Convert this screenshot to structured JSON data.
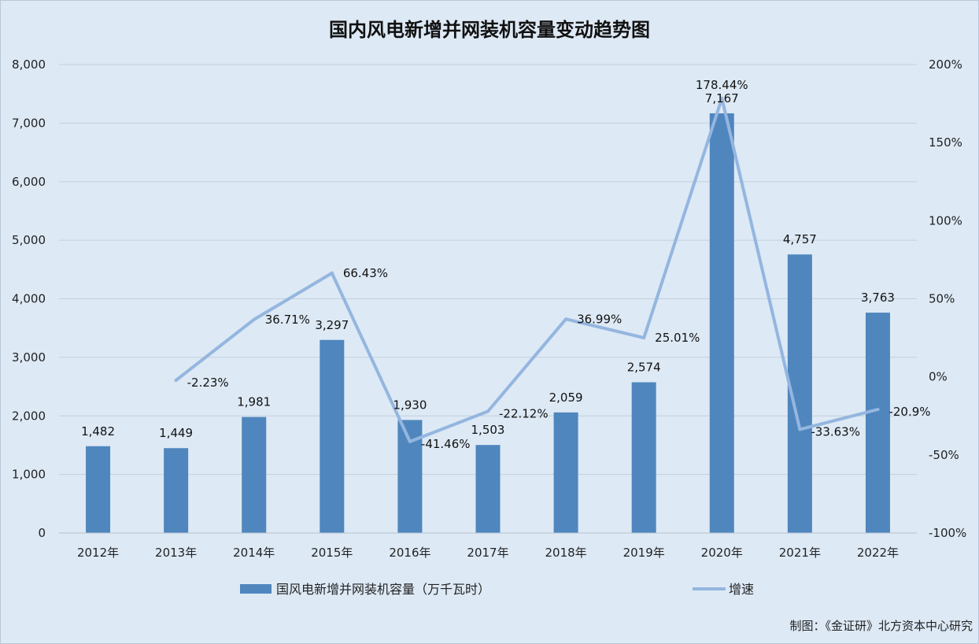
{
  "chart_data": {
    "type": "bar",
    "title": "国内风电新增并网装机容量变动趋势图",
    "categories": [
      "2012年",
      "2013年",
      "2014年",
      "2015年",
      "2016年",
      "2017年",
      "2018年",
      "2019年",
      "2020年",
      "2021年",
      "2022年"
    ],
    "series": [
      {
        "name": "国风电新增并网装机容量（万千瓦时）",
        "type": "bar",
        "axis": "left",
        "color": "#4f86bd",
        "values": [
          1482,
          1449,
          1981,
          3297,
          1930,
          1503,
          2059,
          2574,
          7167,
          4757,
          3763
        ],
        "labels": [
          "1,482",
          "1,449",
          "1,981",
          "3,297",
          "1,930",
          "1,503",
          "2,059",
          "2,574",
          "7,167",
          "4,757",
          "3,763"
        ]
      },
      {
        "name": "增速",
        "type": "line",
        "axis": "right",
        "color": "#94b6df",
        "values": [
          null,
          -2.23,
          36.71,
          66.43,
          -41.46,
          -22.12,
          36.99,
          25.01,
          178.44,
          -33.63,
          -20.9
        ],
        "labels": [
          "",
          "-2.23%",
          "36.71%",
          "66.43%",
          "-41.46%",
          "-22.12%",
          "36.99%",
          "25.01%",
          "178.44%",
          "-33.63%",
          "-20.9%"
        ]
      }
    ],
    "left_axis": {
      "min": 0,
      "max": 8000,
      "ticks": [
        0,
        1000,
        2000,
        3000,
        4000,
        5000,
        6000,
        7000,
        8000
      ],
      "tick_labels": [
        "0",
        "1,000",
        "2,000",
        "3,000",
        "4,000",
        "5,000",
        "6,000",
        "7,000",
        "8,000"
      ]
    },
    "right_axis": {
      "min": -100,
      "max": 200,
      "ticks": [
        -100,
        -50,
        0,
        50,
        100,
        150,
        200
      ],
      "tick_labels": [
        "-100%",
        "-50%",
        "0%",
        "50%",
        "100%",
        "150%",
        "200%"
      ]
    },
    "grid": true,
    "legend_position": "bottom"
  },
  "credit": "制图：《金证研》北方资本中心研究"
}
